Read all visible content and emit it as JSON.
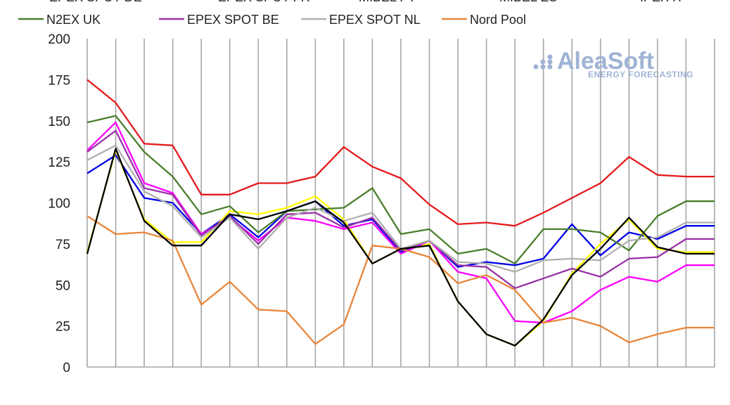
{
  "chart_data": {
    "type": "line",
    "title": "",
    "xlabel": "",
    "ylabel": "",
    "ylim": [
      0,
      200
    ],
    "yticks": [
      0,
      25,
      50,
      75,
      100,
      125,
      150,
      175,
      200
    ],
    "grid": "vertical",
    "legend": "top",
    "x": [
      "",
      "",
      "",
      "",
      "",
      "",
      "",
      "",
      "",
      "",
      "",
      "",
      "",
      "",
      "",
      "",
      "",
      "",
      "",
      "",
      "",
      "",
      ""
    ],
    "series": [
      {
        "name": "",
        "color": "#e31a1c",
        "values": [
          175,
          161,
          136,
          135,
          105,
          105,
          112,
          112,
          116,
          134,
          122,
          115,
          99,
          87,
          88,
          86,
          94,
          103,
          112,
          128,
          117,
          116,
          116
        ]
      },
      {
        "name": "",
        "color": "#0000e6",
        "values": [
          118,
          129,
          103,
          100,
          81,
          93,
          79,
          95,
          101,
          86,
          90,
          70,
          77,
          61,
          64,
          62,
          66,
          87,
          68,
          82,
          78,
          86,
          86
        ]
      },
      {
        "name": "",
        "color": "#ffff00",
        "values": [
          70,
          132,
          90,
          76,
          76,
          95,
          93,
          97,
          104,
          90,
          63,
          72,
          75,
          40,
          20,
          13,
          28,
          57,
          75,
          90,
          72,
          70,
          70
        ]
      },
      {
        "name": "",
        "color": "#ff00ff",
        "values": [
          132,
          149,
          112,
          106,
          81,
          91,
          77,
          91,
          89,
          84,
          88,
          69,
          77,
          58,
          54,
          28,
          27,
          34,
          47,
          55,
          52,
          62,
          62
        ]
      },
      {
        "name": "N2EX UK",
        "color": "#4a7f2c",
        "values": [
          149,
          153,
          131,
          116,
          93,
          98,
          82,
          95,
          96,
          97,
          109,
          81,
          84,
          69,
          72,
          63,
          84,
          84,
          82,
          71,
          92,
          101,
          101
        ]
      },
      {
        "name": "EPEX SPOT BE",
        "color": "#9932a8",
        "values": [
          131,
          144,
          109,
          105,
          80,
          92,
          75,
          93,
          94,
          85,
          91,
          71,
          77,
          62,
          61,
          48,
          54,
          60,
          55,
          66,
          67,
          78,
          78
        ]
      },
      {
        "name": "EPEX SPOT NL",
        "color": "#b0b0b0",
        "values": [
          126,
          135,
          107,
          98,
          79,
          91,
          72,
          91,
          97,
          89,
          94,
          72,
          77,
          64,
          63,
          58,
          65,
          66,
          65,
          77,
          79,
          88,
          88
        ]
      },
      {
        "name": "Nord Pool",
        "color": "#e8863a",
        "values": [
          92,
          81,
          82,
          77,
          38,
          52,
          35,
          34,
          14,
          26,
          74,
          72,
          67,
          51,
          56,
          47,
          27,
          30,
          25,
          15,
          20,
          24,
          24
        ]
      },
      {
        "name": "",
        "color": "#000000",
        "values": [
          69,
          133,
          89,
          74,
          74,
          93,
          90,
          95,
          101,
          88,
          63,
          72,
          74,
          40,
          20,
          13,
          29,
          56,
          72,
          91,
          73,
          69,
          69
        ]
      }
    ]
  },
  "legend_partial_row": [
    "EPEX SPOT DE",
    "EPEX SPOT FR",
    "MIBEL PT",
    "MIBEL ES",
    "IPEX IT"
  ],
  "legend_row": [
    {
      "name": "N2EX UK",
      "color": "#4a7f2c"
    },
    {
      "name": "EPEX SPOT BE",
      "color": "#9932a8"
    },
    {
      "name": "EPEX SPOT NL",
      "color": "#b0b0b0"
    },
    {
      "name": "Nord Pool",
      "color": "#e8863a"
    }
  ],
  "logo": {
    "main": "AleaSoft",
    "sub": "ENERGY FORECASTING"
  }
}
